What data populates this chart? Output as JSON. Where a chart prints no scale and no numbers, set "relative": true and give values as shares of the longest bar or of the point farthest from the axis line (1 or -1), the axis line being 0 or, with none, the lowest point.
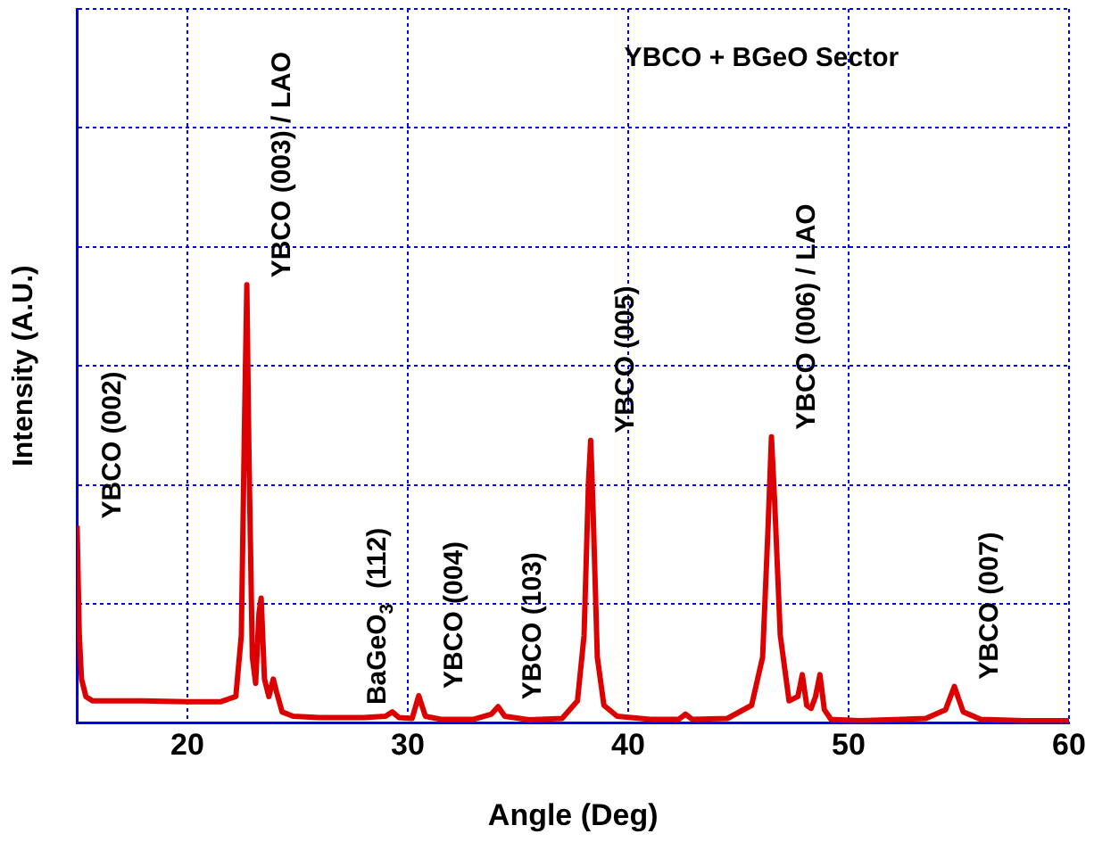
{
  "chart_data": {
    "type": "line",
    "title": "YBCO + BGeO Sector",
    "xlabel": "Angle (Deg)",
    "ylabel": "Intensity (A.U.)",
    "relative": true,
    "xlim": [
      15,
      60
    ],
    "xticks": [
      20,
      30,
      40,
      50,
      60
    ],
    "grid": true,
    "legend": false,
    "tick_labels": "x",
    "series": [
      {
        "color": "#dd0000",
        "x": [
          15,
          15.1,
          15.2,
          15.4,
          15.7,
          16.5,
          18,
          20,
          21.5,
          22.2,
          22.45,
          22.6,
          22.7,
          22.8,
          22.95,
          23.1,
          23.25,
          23.35,
          23.5,
          23.7,
          23.9,
          24.05,
          24.3,
          24.8,
          26,
          28,
          29.0,
          29.3,
          29.6,
          30.2,
          30.5,
          30.8,
          31.5,
          33,
          33.8,
          34.1,
          34.4,
          35.5,
          37,
          37.7,
          38.0,
          38.2,
          38.3,
          38.4,
          38.6,
          38.9,
          39.5,
          41,
          42.3,
          42.6,
          42.9,
          44.5,
          45.6,
          46.1,
          46.35,
          46.5,
          46.65,
          46.9,
          47.3,
          47.7,
          47.9,
          48.1,
          48.3,
          48.5,
          48.7,
          48.9,
          49.2,
          50.5,
          53.5,
          54.4,
          54.8,
          55.2,
          56,
          58,
          60
        ],
        "values": [
          0.45,
          0.2,
          0.1,
          0.06,
          0.05,
          0.05,
          0.05,
          0.048,
          0.048,
          0.06,
          0.2,
          0.7,
          1.0,
          0.6,
          0.15,
          0.09,
          0.25,
          0.285,
          0.1,
          0.06,
          0.1,
          0.07,
          0.025,
          0.015,
          0.012,
          0.012,
          0.015,
          0.025,
          0.012,
          0.01,
          0.062,
          0.015,
          0.008,
          0.008,
          0.02,
          0.037,
          0.015,
          0.007,
          0.01,
          0.05,
          0.2,
          0.55,
          0.645,
          0.5,
          0.15,
          0.04,
          0.015,
          0.008,
          0.008,
          0.02,
          0.008,
          0.01,
          0.04,
          0.15,
          0.45,
          0.653,
          0.5,
          0.2,
          0.05,
          0.06,
          0.11,
          0.04,
          0.033,
          0.06,
          0.11,
          0.03,
          0.008,
          0.005,
          0.01,
          0.03,
          0.083,
          0.025,
          0.008,
          0.005,
          0.005
        ]
      }
    ],
    "annotations": [
      {
        "text": "YBCO (002)",
        "x": 15,
        "y": 0.45
      },
      {
        "text": "YBCO (003) / LAO",
        "x": 22.7,
        "y": 1.0
      },
      {
        "text": "BaGeO$_{3}$  (112)",
        "x": 29.3,
        "y": 0.025
      },
      {
        "text": "YBCO (004)",
        "x": 30.5,
        "y": 0.062
      },
      {
        "text": "YBCO (103)",
        "x": 34.1,
        "y": 0.037
      },
      {
        "text": "YBCO (005)",
        "x": 38.3,
        "y": 0.645
      },
      {
        "text": "YBCO (006) / LAO",
        "x": 46.5,
        "y": 0.653
      },
      {
        "text": "YBCO (007)",
        "x": 54.8,
        "y": 0.083
      }
    ]
  }
}
